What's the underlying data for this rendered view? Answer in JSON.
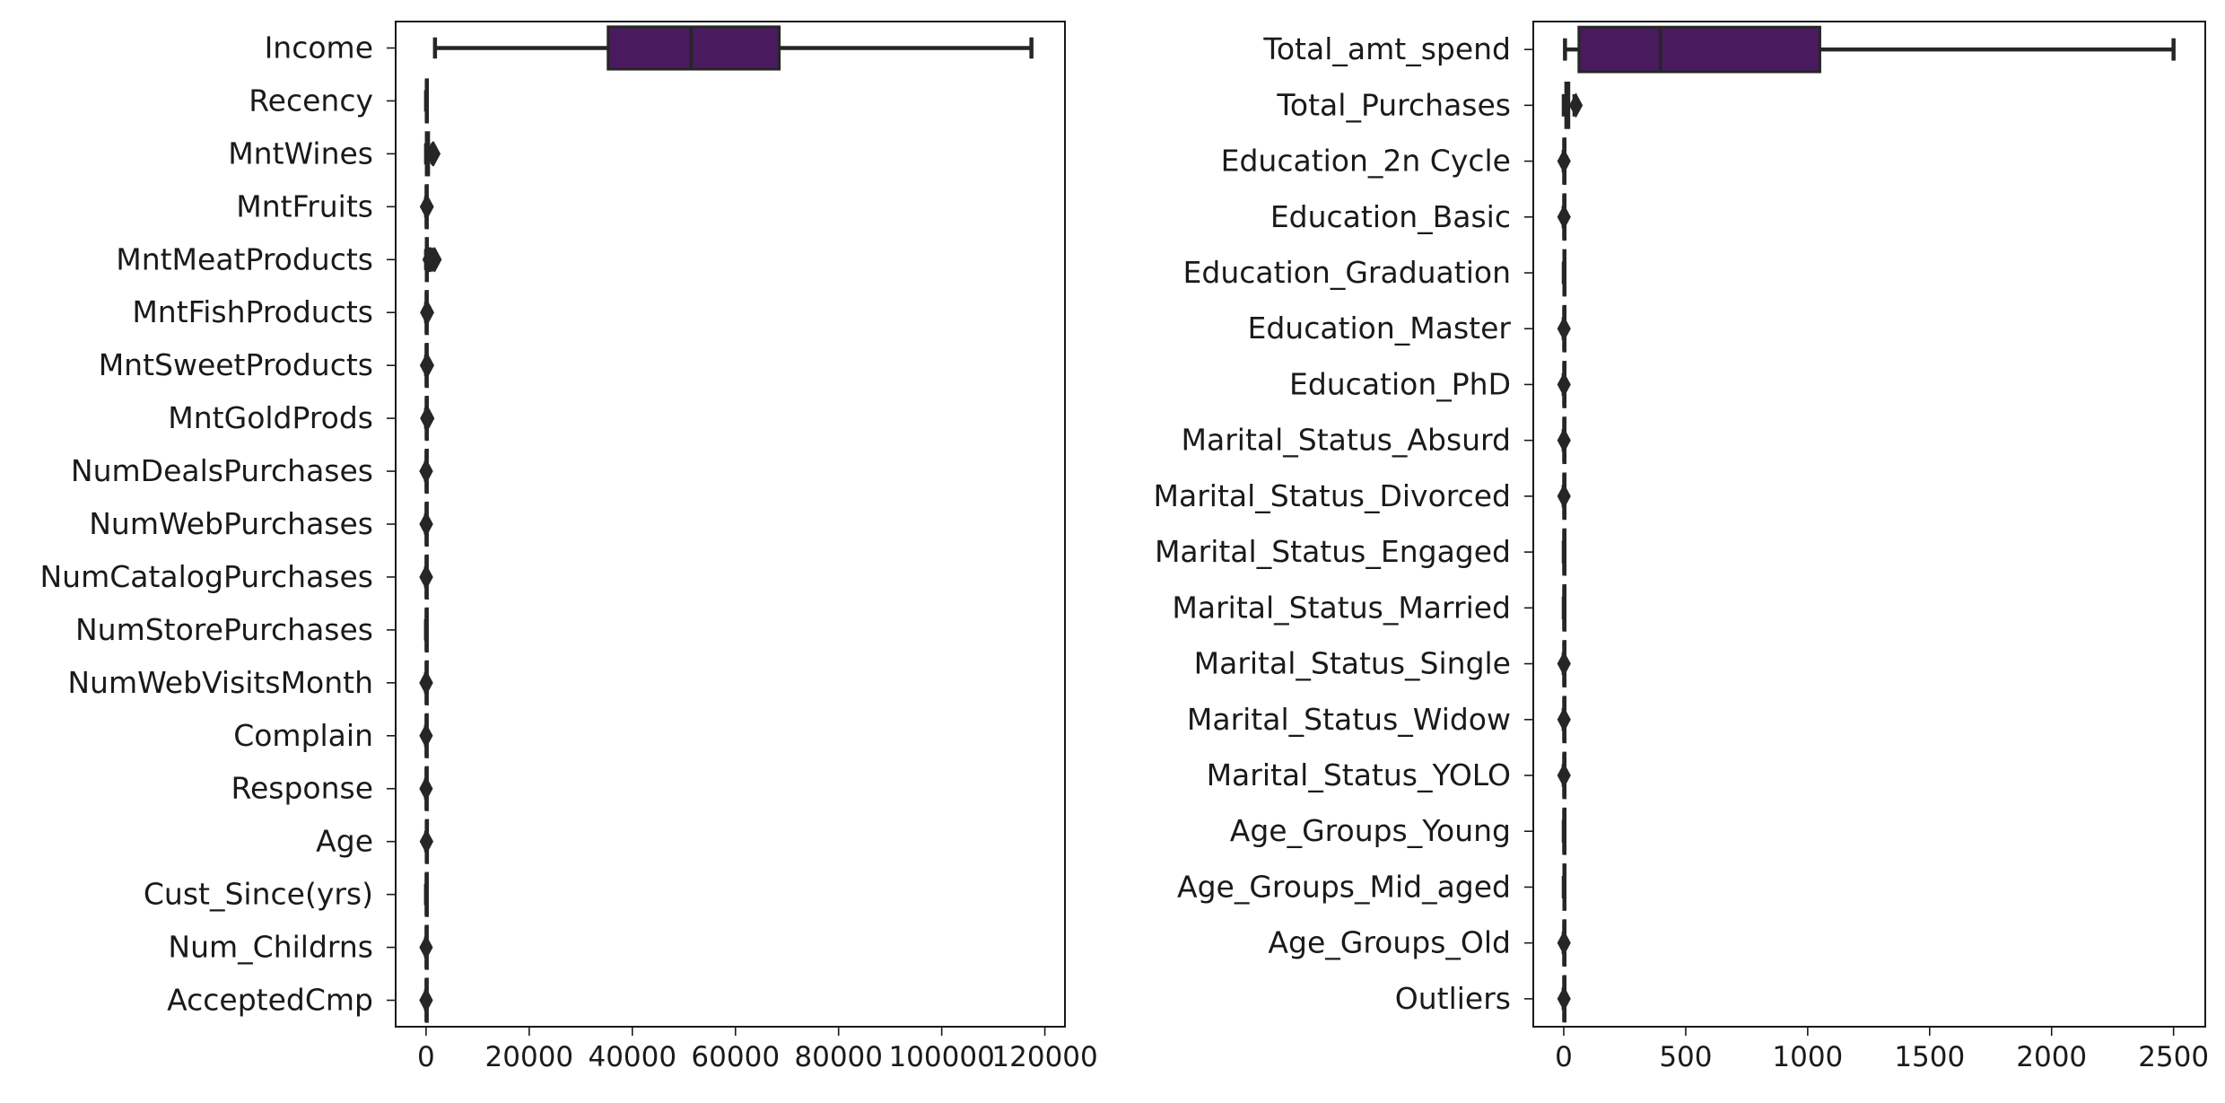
{
  "chart_data": [
    {
      "type": "boxplot",
      "orientation": "horizontal",
      "xlim": [
        -5900,
        123900
      ],
      "xticks": [
        0,
        20000,
        40000,
        60000,
        80000,
        100000,
        120000
      ],
      "xtick_labels": [
        "0",
        "20000",
        "40000",
        "60000",
        "80000",
        "100000",
        "120000"
      ],
      "box_color": "#4a1a5e",
      "line_color": "#262626",
      "categories": [
        "Income",
        "Recency",
        "MntWines",
        "MntFruits",
        "MntMeatProducts",
        "MntFishProducts",
        "MntSweetProducts",
        "MntGoldProds",
        "NumDealsPurchases",
        "NumWebPurchases",
        "NumCatalogPurchases",
        "NumStorePurchases",
        "NumWebVisitsMonth",
        "Complain",
        "Response",
        "Age",
        "Cust_Since(yrs)",
        "Num_Childrns",
        "AcceptedCmp"
      ],
      "boxes": [
        {
          "whislo": 1730,
          "q1": 35300,
          "med": 51400,
          "q3": 68500,
          "whishi": 117400,
          "fliers": []
        },
        {
          "whislo": 0,
          "q1": 24,
          "med": 49,
          "q3": 74,
          "whishi": 99,
          "fliers": []
        },
        {
          "whislo": 0,
          "q1": 24,
          "med": 174,
          "q3": 505,
          "whishi": 1230,
          "fliers": [
            1250,
            1300,
            1350,
            1400,
            1450,
            1490
          ]
        },
        {
          "whislo": 0,
          "q1": 2,
          "med": 8,
          "q3": 33,
          "whishi": 80,
          "fliers": [
            100,
            130,
            160,
            199
          ]
        },
        {
          "whislo": 0,
          "q1": 16,
          "med": 68,
          "q3": 232,
          "whishi": 556,
          "fliers": [
            600,
            700,
            800,
            900,
            1000,
            1300,
            1600,
            1725
          ]
        },
        {
          "whislo": 0,
          "q1": 3,
          "med": 12,
          "q3": 50,
          "whishi": 120,
          "fliers": [
            140,
            170,
            200,
            259
          ]
        },
        {
          "whislo": 0,
          "q1": 1,
          "med": 8,
          "q3": 33,
          "whishi": 81,
          "fliers": [
            100,
            150,
            200,
            263
          ]
        },
        {
          "whislo": 0,
          "q1": 9,
          "med": 24,
          "q3": 56,
          "whishi": 126,
          "fliers": [
            150,
            200,
            250,
            321
          ]
        },
        {
          "whislo": 0,
          "q1": 1,
          "med": 2,
          "q3": 3,
          "whishi": 6,
          "fliers": [
            7,
            10,
            15
          ]
        },
        {
          "whislo": 0,
          "q1": 2,
          "med": 4,
          "q3": 6,
          "whishi": 11,
          "fliers": [
            23,
            25,
            27
          ]
        },
        {
          "whislo": 0,
          "q1": 0,
          "med": 2,
          "q3": 4,
          "whishi": 10,
          "fliers": [
            11,
            22,
            28
          ]
        },
        {
          "whislo": 0,
          "q1": 3,
          "med": 5,
          "q3": 8,
          "whishi": 13,
          "fliers": []
        },
        {
          "whislo": 0,
          "q1": 3,
          "med": 6,
          "q3": 7,
          "whishi": 10,
          "fliers": [
            13,
            17,
            19,
            20
          ]
        },
        {
          "whislo": 0,
          "q1": 0,
          "med": 0,
          "q3": 0,
          "whishi": 0,
          "fliers": [
            1
          ]
        },
        {
          "whislo": 0,
          "q1": 0,
          "med": 0,
          "q3": 0,
          "whishi": 0,
          "fliers": [
            1
          ]
        },
        {
          "whislo": 18,
          "q1": 37,
          "med": 45,
          "q3": 56,
          "whishi": 74,
          "fliers": [
            75,
            80
          ]
        },
        {
          "whislo": 8,
          "q1": 9,
          "med": 9,
          "q3": 10,
          "whishi": 10,
          "fliers": []
        },
        {
          "whislo": 0,
          "q1": 0,
          "med": 1,
          "q3": 1,
          "whishi": 2,
          "fliers": [
            3
          ]
        },
        {
          "whislo": 0,
          "q1": 0,
          "med": 0,
          "q3": 1,
          "whishi": 2,
          "fliers": [
            3,
            4
          ]
        }
      ]
    },
    {
      "type": "boxplot",
      "orientation": "horizontal",
      "xlim": [
        -125,
        2630
      ],
      "xticks": [
        0,
        500,
        1000,
        1500,
        2000,
        2500
      ],
      "xtick_labels": [
        "0",
        "500",
        "1000",
        "1500",
        "2000",
        "2500"
      ],
      "box_color": "#4a1a5e",
      "line_color": "#262626",
      "categories": [
        "Total_amt_spend",
        "Total_Purchases",
        "Education_2n Cycle",
        "Education_Basic",
        "Education_Graduation",
        "Education_Master",
        "Education_PhD",
        "Marital_Status_Absurd",
        "Marital_Status_Divorced",
        "Marital_Status_Engaged",
        "Marital_Status_Married",
        "Marital_Status_Single",
        "Marital_Status_Widow",
        "Marital_Status_YOLO",
        "Age_Groups_Young",
        "Age_Groups_Mid_aged",
        "Age_Groups_Old",
        "Outliers"
      ],
      "boxes": [
        {
          "whislo": 5,
          "q1": 62,
          "med": 396,
          "q3": 1050,
          "whishi": 2500,
          "fliers": []
        },
        {
          "whislo": 0,
          "q1": 8,
          "med": 15,
          "q3": 21,
          "whishi": 44,
          "fliers": [
            50
          ]
        },
        {
          "whislo": 0,
          "q1": 0,
          "med": 0,
          "q3": 0,
          "whishi": 0,
          "fliers": [
            1
          ]
        },
        {
          "whislo": 0,
          "q1": 0,
          "med": 0,
          "q3": 0,
          "whishi": 0,
          "fliers": [
            1
          ]
        },
        {
          "whislo": 0,
          "q1": 0,
          "med": 1,
          "q3": 1,
          "whishi": 1,
          "fliers": []
        },
        {
          "whislo": 0,
          "q1": 0,
          "med": 0,
          "q3": 0,
          "whishi": 0,
          "fliers": [
            1
          ]
        },
        {
          "whislo": 0,
          "q1": 0,
          "med": 0,
          "q3": 0,
          "whishi": 0,
          "fliers": [
            1
          ]
        },
        {
          "whislo": 0,
          "q1": 0,
          "med": 0,
          "q3": 0,
          "whishi": 0,
          "fliers": [
            1
          ]
        },
        {
          "whislo": 0,
          "q1": 0,
          "med": 0,
          "q3": 0,
          "whishi": 0,
          "fliers": [
            1
          ]
        },
        {
          "whislo": 0,
          "q1": 0,
          "med": 0,
          "q3": 1,
          "whishi": 1,
          "fliers": []
        },
        {
          "whislo": 0,
          "q1": 0,
          "med": 0,
          "q3": 1,
          "whishi": 1,
          "fliers": []
        },
        {
          "whislo": 0,
          "q1": 0,
          "med": 0,
          "q3": 0,
          "whishi": 0,
          "fliers": [
            1
          ]
        },
        {
          "whislo": 0,
          "q1": 0,
          "med": 0,
          "q3": 0,
          "whishi": 0,
          "fliers": [
            1
          ]
        },
        {
          "whislo": 0,
          "q1": 0,
          "med": 0,
          "q3": 0,
          "whishi": 0,
          "fliers": [
            1
          ]
        },
        {
          "whislo": 0,
          "q1": 0,
          "med": 0,
          "q3": 1,
          "whishi": 1,
          "fliers": []
        },
        {
          "whislo": 0,
          "q1": 0,
          "med": 1,
          "q3": 1,
          "whishi": 1,
          "fliers": []
        },
        {
          "whislo": 0,
          "q1": 0,
          "med": 0,
          "q3": 0,
          "whishi": 0,
          "fliers": [
            1
          ]
        },
        {
          "whislo": 0,
          "q1": 0,
          "med": 0,
          "q3": 0,
          "whishi": 0,
          "fliers": [
            1
          ]
        }
      ]
    }
  ]
}
